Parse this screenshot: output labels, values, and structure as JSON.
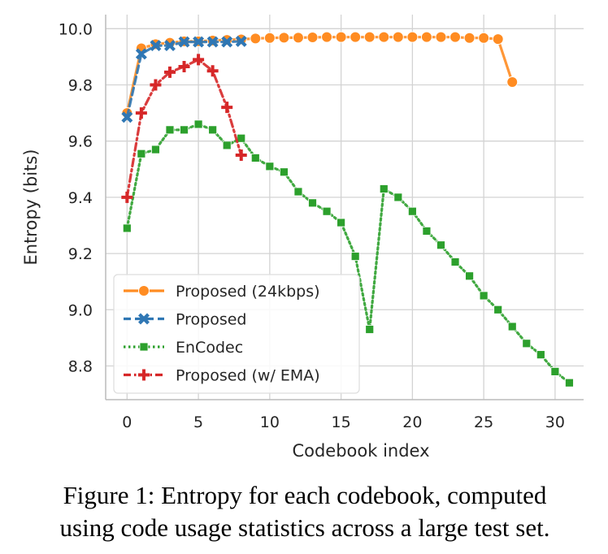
{
  "chart_data": {
    "type": "line",
    "xlabel": "Codebook index",
    "ylabel": "Entropy (bits)",
    "xlim": [
      -1.5,
      32
    ],
    "ylim": [
      8.68,
      10.05
    ],
    "xticks": [
      "0",
      "5",
      "10",
      "15",
      "20",
      "25",
      "30"
    ],
    "yticks": [
      "8.8",
      "9.0",
      "9.2",
      "9.4",
      "9.6",
      "9.8",
      "10.0"
    ],
    "grid": true,
    "legend_position": "lower-left",
    "series": [
      {
        "name": "Proposed (24kbps)",
        "color": "#ff8c22",
        "marker": "circle",
        "linestyle": "solid",
        "x": [
          0,
          1,
          2,
          3,
          4,
          5,
          6,
          7,
          8,
          9,
          10,
          11,
          12,
          13,
          14,
          15,
          16,
          17,
          18,
          19,
          20,
          21,
          22,
          23,
          24,
          25,
          26,
          27
        ],
        "values": [
          9.7,
          9.93,
          9.945,
          9.95,
          9.955,
          9.955,
          9.958,
          9.96,
          9.962,
          9.965,
          9.967,
          9.968,
          9.968,
          9.969,
          9.97,
          9.97,
          9.97,
          9.97,
          9.97,
          9.97,
          9.97,
          9.97,
          9.97,
          9.97,
          9.967,
          9.967,
          9.963,
          9.81
        ]
      },
      {
        "name": "Proposed",
        "color": "#2f77b4",
        "marker": "x",
        "linestyle": "dashed",
        "x": [
          0,
          1,
          2,
          3,
          4,
          5,
          6,
          7,
          8
        ],
        "values": [
          9.685,
          9.91,
          9.94,
          9.94,
          9.953,
          9.953,
          9.953,
          9.953,
          9.955
        ]
      },
      {
        "name": "EnCodec",
        "color": "#2ca02c",
        "marker": "square",
        "linestyle": "dotted",
        "x": [
          0,
          1,
          2,
          3,
          4,
          5,
          6,
          7,
          8,
          9,
          10,
          11,
          12,
          13,
          14,
          15,
          16,
          17,
          18,
          19,
          20,
          21,
          22,
          23,
          24,
          25,
          26,
          27,
          28,
          29,
          30,
          31
        ],
        "values": [
          9.29,
          9.555,
          9.57,
          9.64,
          9.64,
          9.66,
          9.64,
          9.585,
          9.61,
          9.54,
          9.51,
          9.49,
          9.42,
          9.38,
          9.35,
          9.31,
          9.19,
          8.93,
          9.43,
          9.4,
          9.35,
          9.28,
          9.23,
          9.17,
          9.12,
          9.05,
          9.0,
          8.94,
          8.88,
          8.84,
          8.78,
          8.74
        ]
      },
      {
        "name": "Proposed (w/ EMA)",
        "color": "#d62728",
        "marker": "plus",
        "linestyle": "dashdot",
        "x": [
          0,
          1,
          2,
          3,
          4,
          5,
          6,
          7,
          8
        ],
        "values": [
          9.4,
          9.7,
          9.8,
          9.845,
          9.865,
          9.89,
          9.85,
          9.72,
          9.55
        ]
      }
    ]
  },
  "caption": {
    "line1": "Figure 1: Entropy for each codebook, computed",
    "line2": "using code usage statistics across a large test set."
  }
}
